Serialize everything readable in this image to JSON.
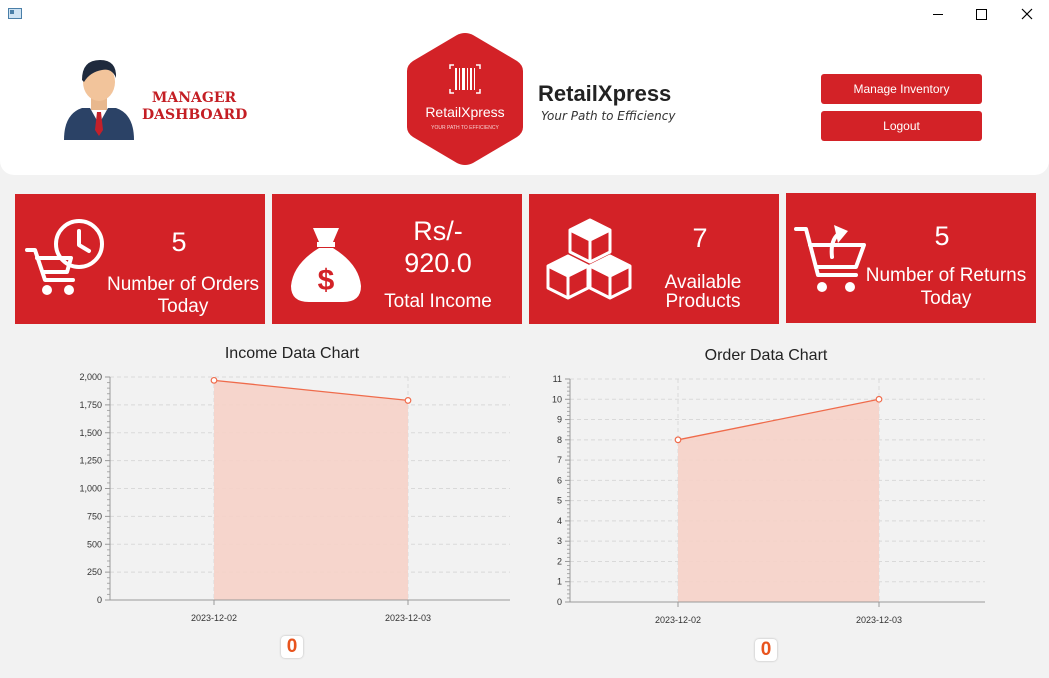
{
  "colors": {
    "accent": "#d32227",
    "area_fill": "#f6d2c8",
    "area_line": "#ef6b4b"
  },
  "header": {
    "manager_title_line1": "MANAGER",
    "manager_title_line2": "DASHBOARD",
    "logo_text": "RetailXpress",
    "logo_tagline": "YOUR PATH TO EFFICIENCY",
    "brand_name": "RetailXpress",
    "brand_tagline": "Your Path to Efficiency",
    "manage_inventory_label": "Manage Inventory",
    "logout_label": "Logout"
  },
  "cards": {
    "orders": {
      "value": "5",
      "label_line1": "Number of Orders",
      "label_line2": "Today",
      "icon": "cart-clock-icon"
    },
    "income": {
      "value_line1": "Rs/-",
      "value_line2": "920.0",
      "label": "Total Income",
      "icon": "money-bag-icon"
    },
    "products": {
      "value": "7",
      "label_line1": "Available",
      "label_line2": "Products",
      "icon": "boxes-icon"
    },
    "returns": {
      "value": "5",
      "label_line1": "Number of Returns",
      "label_line2": "Today",
      "icon": "cart-return-icon"
    }
  },
  "income_chart": {
    "zero_label": "0"
  },
  "order_chart": {
    "zero_label": "0"
  },
  "chart_data": [
    {
      "type": "area",
      "title": "Income Data Chart",
      "x": [
        "2023-12-02",
        "2023-12-03"
      ],
      "values": [
        1970,
        1790
      ],
      "yticks": [
        "0",
        "250",
        "500",
        "750",
        "1,000",
        "1,250",
        "1,500",
        "1,750",
        "2,000"
      ],
      "ylim": [
        0,
        2000
      ],
      "grid": true
    },
    {
      "type": "area",
      "title": "Order Data Chart",
      "x": [
        "2023-12-02",
        "2023-12-03"
      ],
      "values": [
        8,
        10
      ],
      "yticks": [
        "0",
        "1",
        "2",
        "3",
        "4",
        "5",
        "6",
        "7",
        "8",
        "9",
        "10",
        "11"
      ],
      "ylim": [
        0,
        11
      ],
      "grid": true
    }
  ]
}
